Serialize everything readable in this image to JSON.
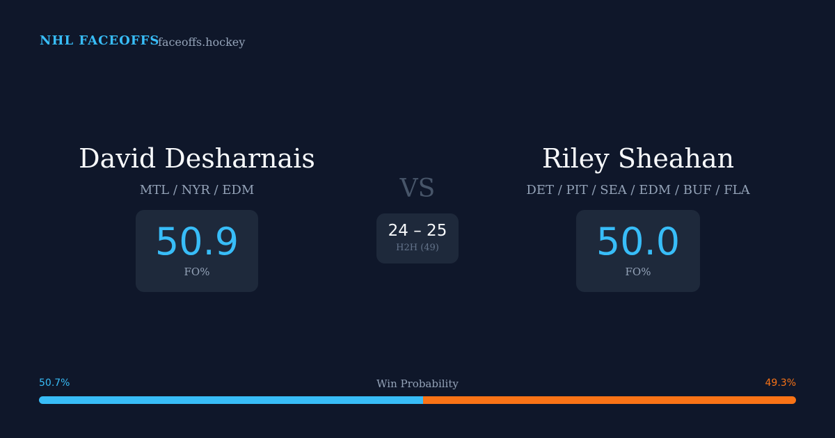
{
  "header": {
    "title": "NHL FACEOFFS",
    "site": "faceoffs.hockey"
  },
  "players": [
    {
      "name": "David Desharnais",
      "teams": "MTL / NYR / EDM",
      "fo_pct": "50.9",
      "fo_label": "FO%"
    },
    {
      "name": "Riley Sheahan",
      "teams": "DET / PIT / SEA / EDM / BUF / FLA",
      "fo_pct": "50.0",
      "fo_label": "FO%"
    }
  ],
  "versus": "VS",
  "head_to_head": {
    "score": "24 – 25",
    "label": "H2H (49)"
  },
  "win_probability": {
    "label": "Win Probability",
    "values": [
      50.7,
      49.3
    ],
    "value_labels": [
      "50.7%",
      "49.3%"
    ],
    "colors": [
      "#38bdf8",
      "#f97316"
    ]
  }
}
